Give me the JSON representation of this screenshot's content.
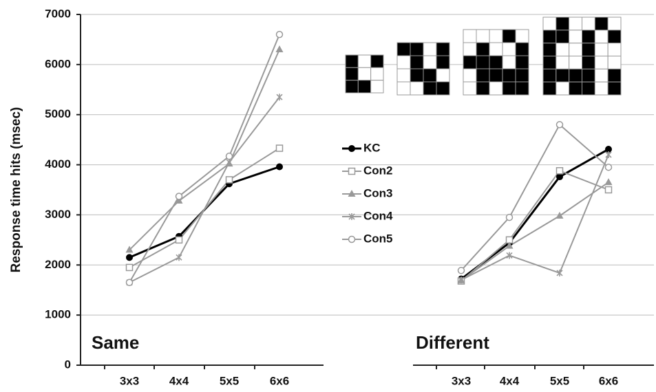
{
  "chart_data": {
    "type": "line",
    "y_label": "Response time hits (msec)",
    "panels": [
      "Same",
      "Different"
    ],
    "categories": [
      "3x3",
      "4x4",
      "5x5",
      "6x6"
    ],
    "ylim": [
      0,
      7000
    ],
    "yticks": [
      0,
      1000,
      2000,
      3000,
      4000,
      5000,
      6000,
      7000
    ],
    "grid": true,
    "series": [
      {
        "name": "KC",
        "color": "#000000",
        "marker": "filled-circle",
        "values": [
          [
            2150,
            2570,
            3620,
            3960
          ],
          [
            1720,
            2440,
            3760,
            4310
          ]
        ]
      },
      {
        "name": "Con2",
        "color": "#999999",
        "marker": "open-square",
        "values": [
          [
            1950,
            2500,
            3700,
            4330
          ],
          [
            1680,
            2500,
            3880,
            3500
          ]
        ]
      },
      {
        "name": "Con3",
        "color": "#999999",
        "marker": "triangle",
        "values": [
          [
            2300,
            3280,
            4020,
            6300
          ],
          [
            1690,
            2380,
            2980,
            3650
          ]
        ]
      },
      {
        "name": "Con4",
        "color": "#999999",
        "marker": "star",
        "values": [
          [
            1650,
            2150,
            4050,
            5350
          ],
          [
            1700,
            2190,
            1840,
            4200
          ]
        ]
      },
      {
        "name": "Con5",
        "color": "#999999",
        "marker": "open-circle",
        "values": [
          [
            1650,
            3370,
            4170,
            6600
          ],
          [
            1890,
            2950,
            4800,
            3950
          ]
        ]
      }
    ]
  }
}
